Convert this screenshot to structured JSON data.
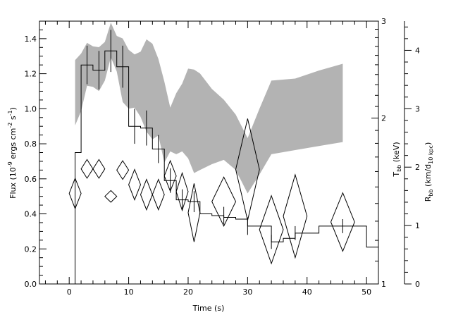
{
  "chart_data": {
    "type": "line",
    "x_axis": {
      "label": "Time (s)",
      "range": [
        -5,
        52
      ],
      "ticks": [
        0,
        10,
        20,
        30,
        40,
        50
      ]
    },
    "y_axis_left": {
      "label_prefix": "Flux (10",
      "label_sup1": "-9",
      "label_mid": " ergs cm",
      "label_sup2": "-2",
      "label_mid2": " s",
      "label_sup3": "-1",
      "label_suffix": ")",
      "range": [
        0,
        1.5
      ],
      "ticks": [
        "0.0",
        "0.2",
        "0.4",
        "0.6",
        "0.8",
        "1.0",
        "1.2",
        "1.4"
      ]
    },
    "y_axis_tbb": {
      "label": "T",
      "label_sub": "bb",
      "label_unit": " (keV)",
      "scale": "log",
      "range": [
        1,
        3
      ],
      "ticks": [
        "1",
        "2",
        "3"
      ]
    },
    "y_axis_rbb": {
      "label": "R",
      "label_sub": "bb",
      "label_unit1": " (km/d",
      "label_sub2": "10 kpc",
      "label_unit2": ")",
      "range": [
        0,
        4.5
      ],
      "ticks": [
        "0",
        "1",
        "2",
        "3",
        "4"
      ]
    },
    "flux_histogram": {
      "edges": [
        1,
        2,
        4,
        6,
        8,
        10,
        12,
        14,
        16,
        18,
        20,
        22,
        24,
        26,
        28,
        30,
        32,
        34,
        36,
        38,
        40,
        42,
        44,
        46,
        48,
        50,
        52
      ],
      "values": [
        0.75,
        1.25,
        1.22,
        1.33,
        1.24,
        0.9,
        0.89,
        0.77,
        0.59,
        0.48,
        0.47,
        0.4,
        0.39,
        0.38,
        0.37,
        0.33,
        0.33,
        0.24,
        0.26,
        0.29,
        0.29,
        0.33,
        0.33,
        0.33,
        0.33,
        0.21
      ],
      "errorbars": [
        {
          "x": 3,
          "y": 1.25,
          "err": 0.11
        },
        {
          "x": 5,
          "y": 1.22,
          "err": 0.11
        },
        {
          "x": 7,
          "y": 1.33,
          "err": 0.12
        },
        {
          "x": 9,
          "y": 1.24,
          "err": 0.12
        },
        {
          "x": 11,
          "y": 0.9,
          "err": 0.1
        },
        {
          "x": 13,
          "y": 0.89,
          "err": 0.1
        },
        {
          "x": 15,
          "y": 0.77,
          "err": 0.08
        },
        {
          "x": 17,
          "y": 0.59,
          "err": 0.07
        },
        {
          "x": 19,
          "y": 0.48,
          "err": 0.06
        },
        {
          "x": 21,
          "y": 0.47,
          "err": 0.06
        },
        {
          "x": 26,
          "y": 0.39,
          "err": 0.05
        },
        {
          "x": 30,
          "y": 0.33,
          "err": 0.05
        },
        {
          "x": 34,
          "y": 0.24,
          "err": 0.04
        },
        {
          "x": 38,
          "y": 0.29,
          "err": 0.04
        },
        {
          "x": 46,
          "y": 0.33,
          "err": 0.04
        }
      ]
    },
    "tbb_band": {
      "x": [
        1,
        2,
        3,
        4,
        5,
        6,
        7,
        8,
        9,
        10,
        11,
        12,
        13,
        14,
        15,
        16,
        17,
        18,
        19,
        20,
        21,
        22,
        24,
        26,
        28,
        30,
        32,
        34,
        38,
        42,
        46
      ],
      "upper": [
        2.55,
        2.62,
        2.74,
        2.7,
        2.69,
        2.75,
        2.98,
        2.82,
        2.79,
        2.66,
        2.61,
        2.64,
        2.78,
        2.73,
        2.56,
        2.33,
        2.09,
        2.22,
        2.31,
        2.46,
        2.45,
        2.41,
        2.26,
        2.16,
        2.03,
        1.84,
        2.08,
        2.34,
        2.36,
        2.44,
        2.51
      ],
      "lower": [
        1.94,
        2.06,
        2.29,
        2.28,
        2.24,
        2.34,
        2.58,
        2.43,
        2.14,
        2.08,
        2.09,
        2.01,
        1.89,
        1.83,
        1.86,
        1.66,
        1.74,
        1.72,
        1.74,
        1.69,
        1.59,
        1.61,
        1.65,
        1.68,
        1.61,
        1.46,
        1.58,
        1.72,
        1.75,
        1.78,
        1.81
      ]
    },
    "rbb_diamonds": [
      {
        "x": 1,
        "y": 1.55,
        "dx": 1.0,
        "dy": 0.26
      },
      {
        "x": 3,
        "y": 1.97,
        "dx": 1.0,
        "dy": 0.16
      },
      {
        "x": 5,
        "y": 1.97,
        "dx": 1.0,
        "dy": 0.16
      },
      {
        "x": 7,
        "y": 1.5,
        "dx": 1.0,
        "dy": 0.1
      },
      {
        "x": 9,
        "y": 1.95,
        "dx": 1.0,
        "dy": 0.16
      },
      {
        "x": 11,
        "y": 1.7,
        "dx": 1.0,
        "dy": 0.26
      },
      {
        "x": 13,
        "y": 1.53,
        "dx": 1.0,
        "dy": 0.26
      },
      {
        "x": 15,
        "y": 1.53,
        "dx": 1.0,
        "dy": 0.26
      },
      {
        "x": 17,
        "y": 1.85,
        "dx": 1.0,
        "dy": 0.26
      },
      {
        "x": 19,
        "y": 1.58,
        "dx": 1.0,
        "dy": 0.32
      },
      {
        "x": 21,
        "y": 1.22,
        "dx": 1.0,
        "dy": 0.5
      },
      {
        "x": 26,
        "y": 1.41,
        "dx": 2.0,
        "dy": 0.42
      },
      {
        "x": 30,
        "y": 1.96,
        "dx": 2.0,
        "dy": 0.87
      },
      {
        "x": 34,
        "y": 0.93,
        "dx": 2.0,
        "dy": 0.58
      },
      {
        "x": 38,
        "y": 1.16,
        "dx": 2.0,
        "dy": 0.71
      },
      {
        "x": 46,
        "y": 1.06,
        "dx": 2.0,
        "dy": 0.5
      }
    ]
  }
}
